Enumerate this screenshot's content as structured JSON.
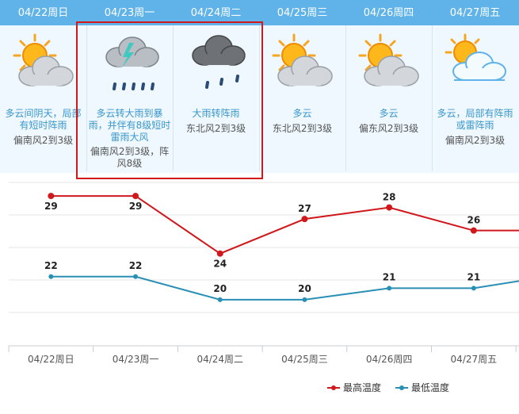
{
  "colors": {
    "header_bg": "#5fb3e8",
    "panel_bg": "#eef8fe",
    "desc_text": "#3a96cc",
    "high_series": "#d0181c",
    "low_series": "#2a8fb5",
    "highlight_border": "#d0181c"
  },
  "days": [
    {
      "date": "04/22周日",
      "icon": "sun-cloud-icon",
      "desc": "多云间阴天，局部有短时阵雨",
      "wind": "偏南风2到3级"
    },
    {
      "date": "04/23周一",
      "icon": "cloud-lightning-rain-icon",
      "desc": "多云转大雨到暴雨，并伴有8级短时雷雨大风",
      "wind": "偏南风2到3级，阵风8级"
    },
    {
      "date": "04/24周二",
      "icon": "dark-cloud-rain-icon",
      "desc": "大雨转阵雨",
      "wind": "东北风2到3级"
    },
    {
      "date": "04/25周三",
      "icon": "sun-cloud-icon",
      "desc": "多云",
      "wind": "东北风2到3级"
    },
    {
      "date": "04/26周四",
      "icon": "sun-cloud-icon",
      "desc": "多云",
      "wind": "偏东风2到3级"
    },
    {
      "date": "04/27周五",
      "icon": "sun-light-cloud-icon",
      "desc": "多云，局部有阵雨或雷阵雨",
      "wind": "偏南风2到3级"
    }
  ],
  "chart_data": {
    "type": "line",
    "categories": [
      "04/22周日",
      "04/23周一",
      "04/24周二",
      "04/25周三",
      "04/26周四",
      "04/27周五"
    ],
    "series": [
      {
        "name": "最高温度",
        "values": [
          29,
          29,
          24,
          27,
          28,
          26
        ]
      },
      {
        "name": "最低温度",
        "values": [
          22,
          22,
          20,
          20,
          21,
          21
        ]
      }
    ],
    "ylim": [
      16,
      31
    ],
    "grid": true,
    "legend": "bottom-right"
  }
}
